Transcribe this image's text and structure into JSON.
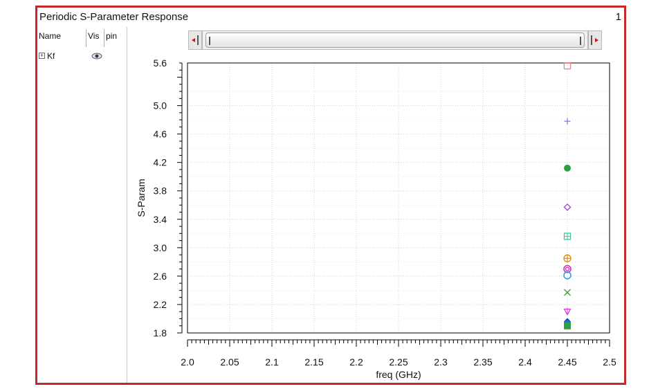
{
  "window": {
    "title": "Periodic S-Parameter Response",
    "page_number": "1"
  },
  "side_panel": {
    "columns": [
      "Name",
      "Vis",
      "pin"
    ],
    "traces": [
      {
        "label": "Kf",
        "visible": true,
        "icon": "eye-icon"
      }
    ]
  },
  "scrollbar": {
    "left_icon": "arrow-left-icon",
    "right_icon": "arrow-right-icon"
  },
  "chart_data": {
    "type": "scatter",
    "title": "",
    "xlabel": "freq (GHz)",
    "ylabel": "S-Param",
    "xlim": [
      2.0,
      2.5
    ],
    "ylim": [
      1.8,
      5.6
    ],
    "x_ticks": [
      "2.0",
      "2.05",
      "2.1",
      "2.15",
      "2.2",
      "2.25",
      "2.3",
      "2.35",
      "2.4",
      "2.45",
      "2.5"
    ],
    "y_ticks": [
      "1.8",
      "2.2",
      "2.6",
      "3.0",
      "3.4",
      "3.8",
      "4.2",
      "4.6",
      "5.0",
      "5.6"
    ],
    "grid": true,
    "series": [
      {
        "marker": "square",
        "color": "#f08080",
        "x": 2.45,
        "y": 5.56
      },
      {
        "marker": "plus",
        "color": "#7b7bf0",
        "x": 2.45,
        "y": 4.78
      },
      {
        "marker": "filled-circle",
        "color": "#2e9e3a",
        "x": 2.45,
        "y": 4.12
      },
      {
        "marker": "diamond",
        "color": "#a040e0",
        "x": 2.45,
        "y": 3.57
      },
      {
        "marker": "square-plus",
        "color": "#30d090",
        "x": 2.45,
        "y": 3.16
      },
      {
        "marker": "circle-plus",
        "color": "#e08a10",
        "x": 2.45,
        "y": 2.85
      },
      {
        "marker": "double-circle",
        "color": "#d020c0",
        "x": 2.45,
        "y": 2.7
      },
      {
        "marker": "circle",
        "color": "#20a0e0",
        "x": 2.45,
        "y": 2.61
      },
      {
        "marker": "x",
        "color": "#40a030",
        "x": 2.45,
        "y": 2.37
      },
      {
        "marker": "triangle-down",
        "color": "#e040e0",
        "x": 2.45,
        "y": 2.1
      },
      {
        "marker": "filled-diamond",
        "color": "#2040c0",
        "x": 2.45,
        "y": 1.96
      },
      {
        "marker": "filled-circle",
        "color": "#1e6ee0",
        "x": 2.45,
        "y": 1.93
      },
      {
        "marker": "filled-square",
        "color": "#2aa040",
        "x": 2.45,
        "y": 1.9
      }
    ]
  }
}
